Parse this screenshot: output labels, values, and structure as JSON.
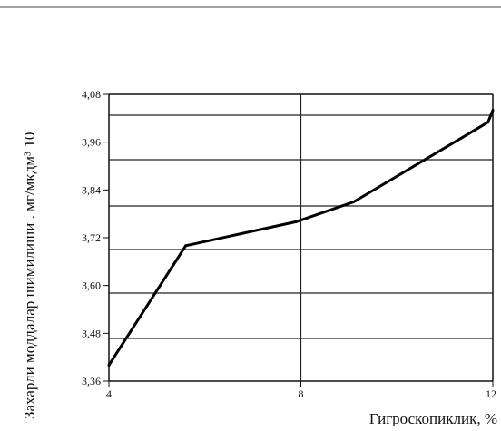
{
  "chart_data": {
    "type": "line",
    "xlabel": "Гигроскопиклик, %",
    "ylabel": "Захарли моддалар шимилиши . мг/мкдм³ 10",
    "xlim": [
      4,
      12
    ],
    "ylim": [
      3.36,
      4.08
    ],
    "x_ticks": [
      4,
      8,
      12
    ],
    "x_tick_labels": [
      "4",
      "8",
      "12"
    ],
    "y_ticks": [
      3.36,
      3.48,
      3.6,
      3.72,
      3.84,
      3.96,
      4.08
    ],
    "y_tick_labels": [
      "3,36",
      "3,48",
      "3,60",
      "3,72",
      "3,84",
      "3,96",
      "4,08"
    ],
    "grid": "horizontal and vertical at x=8",
    "series": [
      {
        "x": [
          4.0,
          5.6,
          7.9,
          9.1,
          11.9,
          12.0
        ],
        "y": [
          3.4,
          3.7,
          3.76,
          3.81,
          4.01,
          4.04
        ]
      }
    ],
    "line_color": "#000000"
  }
}
